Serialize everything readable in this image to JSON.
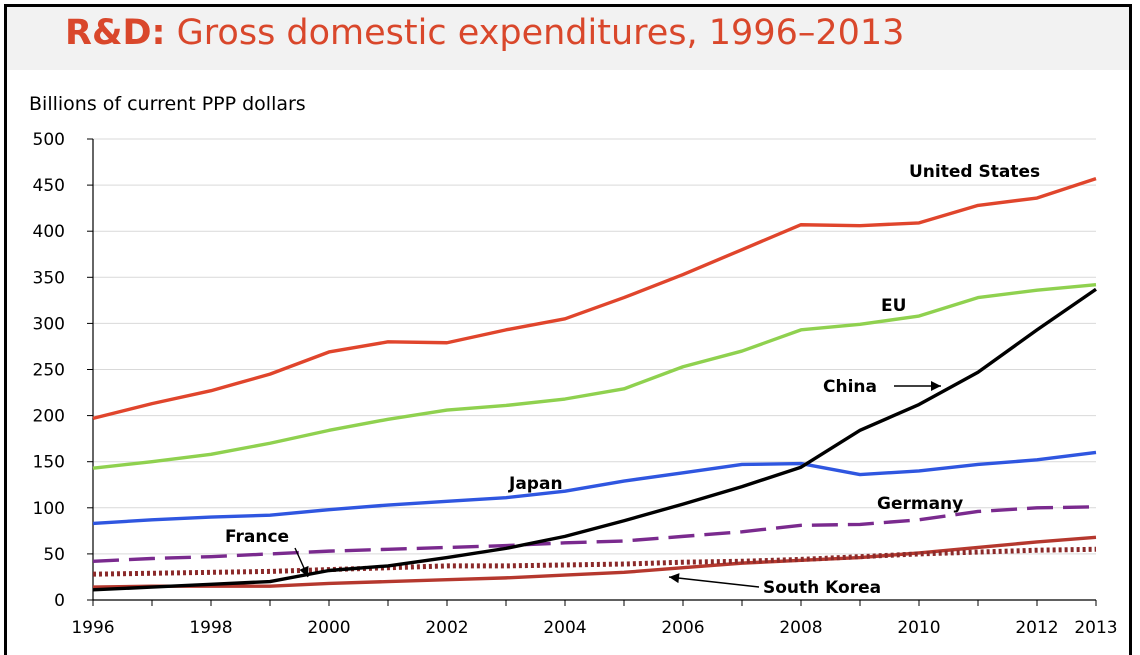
{
  "title": {
    "prefix": "R&D:",
    "text": "Gross domestic expenditures, 1996–2013"
  },
  "chart_data": {
    "type": "line",
    "title": "R&D: Gross domestic expenditures, 1996–2013",
    "ylabel": "Billions of current PPP dollars",
    "xlabel": "",
    "ylim": [
      0,
      500
    ],
    "xlim": [
      1996,
      2013
    ],
    "yticks": [
      0,
      50,
      100,
      150,
      200,
      250,
      300,
      350,
      400,
      450,
      500
    ],
    "xticks": [
      "1996",
      "1998",
      "2000",
      "2002",
      "2004",
      "2006",
      "2008",
      "2010",
      "2012",
      "2013"
    ],
    "grid": true,
    "x": [
      1996,
      1997,
      1998,
      1999,
      2000,
      2001,
      2002,
      2003,
      2004,
      2005,
      2006,
      2007,
      2008,
      2009,
      2010,
      2011,
      2012,
      2013
    ],
    "series": [
      {
        "name": "United States",
        "color": "#e0452c",
        "style": "solid",
        "values": [
          197,
          213,
          227,
          245,
          269,
          280,
          279,
          293,
          305,
          328,
          353,
          380,
          407,
          406,
          409,
          428,
          436,
          457
        ]
      },
      {
        "name": "EU",
        "color": "#8fd14f",
        "style": "solid",
        "values": [
          143,
          150,
          158,
          170,
          184,
          196,
          206,
          211,
          218,
          229,
          253,
          270,
          293,
          299,
          308,
          328,
          336,
          342
        ]
      },
      {
        "name": "China",
        "color": "#000000",
        "style": "solid",
        "values": [
          11,
          14,
          17,
          20,
          32,
          37,
          46,
          56,
          69,
          86,
          104,
          123,
          144,
          184,
          212,
          247,
          293,
          337
        ]
      },
      {
        "name": "Japan",
        "color": "#2f56e0",
        "style": "solid",
        "values": [
          83,
          87,
          90,
          92,
          98,
          103,
          107,
          111,
          118,
          129,
          138,
          147,
          148,
          136,
          140,
          147,
          152,
          160
        ]
      },
      {
        "name": "Germany",
        "color": "#7a2a8e",
        "style": "long-dash",
        "values": [
          42,
          45,
          47,
          50,
          53,
          55,
          57,
          59,
          62,
          64,
          69,
          74,
          81,
          82,
          87,
          96,
          100,
          101
        ]
      },
      {
        "name": "France",
        "color": "#8b2a2a",
        "style": "dotted",
        "values": [
          28,
          29,
          30,
          31,
          33,
          35,
          37,
          37,
          38,
          39,
          41,
          42,
          44,
          47,
          50,
          52,
          54,
          55
        ]
      },
      {
        "name": "South Korea",
        "color": "#b5382e",
        "style": "solid",
        "values": [
          14,
          15,
          15,
          15,
          18,
          20,
          22,
          24,
          27,
          30,
          35,
          40,
          43,
          46,
          51,
          57,
          63,
          68
        ]
      }
    ],
    "annotations": [
      "United States",
      "EU",
      "China",
      "Japan",
      "Germany",
      "France",
      "South Korea"
    ]
  }
}
